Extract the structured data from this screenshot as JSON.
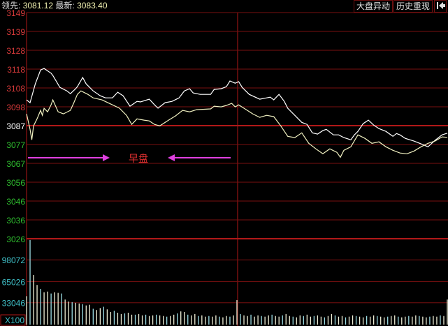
{
  "header": {
    "leader_label": "领先:",
    "leader_value": "3081.12",
    "latest_label": "最新:",
    "latest_value": "3083.40"
  },
  "toolbar": {
    "market_alert_label": "大盘异动",
    "history_replay_label": "历史重现",
    "back_icon": "skip-back-icon"
  },
  "annotation": {
    "session_label": "早盘",
    "arrow_color": "#e040e0",
    "label_color": "#e03030"
  },
  "colors": {
    "grid": "#7a1010",
    "grid_strong": "#b01818",
    "price_up": "#d83a3a",
    "price_flat": "#ffffff",
    "price_down": "#30c030",
    "volume_axis": "#40c0c8",
    "line_latest": "#ffffff",
    "line_leader": "#f0f0c0"
  },
  "chart_data": [
    {
      "type": "line",
      "x_unit": "minute index",
      "ylim": [
        3026,
        3149
      ],
      "reference_price": 3087,
      "y_ticks": [
        "3149",
        "3139",
        "3128",
        "3118",
        "3108",
        "3098",
        "3087",
        "3077",
        "3067",
        "3056",
        "3046",
        "3036",
        "3026"
      ],
      "series": [
        {
          "name": "最新",
          "points": [
            [
              0,
              3101.5
            ],
            [
              2,
              3100.0
            ],
            [
              5,
              3110.2
            ],
            [
              8,
              3117.8
            ],
            [
              10,
              3118.6
            ],
            [
              14,
              3116.0
            ],
            [
              15,
              3114.8
            ],
            [
              19,
              3108.3
            ],
            [
              23,
              3106.4
            ],
            [
              25,
              3104.9
            ],
            [
              28,
              3107.6
            ],
            [
              29,
              3108.7
            ],
            [
              32,
              3113.7
            ],
            [
              34,
              3110.2
            ],
            [
              36,
              3108.3
            ],
            [
              38,
              3106.4
            ],
            [
              42,
              3103.8
            ],
            [
              45,
              3102.6
            ],
            [
              49,
              3102.6
            ],
            [
              52,
              3105.7
            ],
            [
              55,
              3103.8
            ],
            [
              59,
              3098.1
            ],
            [
              63,
              3100.7
            ],
            [
              65,
              3100.4
            ],
            [
              70,
              3101.9
            ],
            [
              73,
              3098.8
            ],
            [
              75,
              3097.0
            ],
            [
              79,
              3100.0
            ],
            [
              83,
              3100.7
            ],
            [
              87,
              3102.6
            ],
            [
              90,
              3106.4
            ],
            [
              93,
              3107.6
            ],
            [
              95,
              3105.3
            ],
            [
              99,
              3104.5
            ],
            [
              105,
              3104.5
            ],
            [
              107,
              3107.2
            ],
            [
              111,
              3107.6
            ],
            [
              114,
              3108.7
            ],
            [
              116,
              3111.8
            ],
            [
              119,
              3110.6
            ],
            [
              121,
              3111.4
            ],
            [
              123,
              3108.3
            ],
            [
              127,
              3104.5
            ],
            [
              133,
              3101.9
            ],
            [
              137,
              3102.6
            ],
            [
              139,
              3103.0
            ],
            [
              141,
              3101.5
            ],
            [
              144,
              3104.5
            ],
            [
              147,
              3100.7
            ],
            [
              149,
              3097.0
            ],
            [
              153,
              3093.1
            ],
            [
              157,
              3089.3
            ],
            [
              160,
              3088.2
            ],
            [
              163,
              3083.6
            ],
            [
              166,
              3082.9
            ],
            [
              169,
              3084.8
            ],
            [
              171,
              3085.5
            ],
            [
              175,
              3082.5
            ],
            [
              178,
              3082.5
            ],
            [
              181,
              3081.0
            ],
            [
              185,
              3079.8
            ],
            [
              187,
              3082.5
            ],
            [
              189,
              3084.4
            ],
            [
              192,
              3088.6
            ],
            [
              195,
              3090.5
            ],
            [
              198,
              3087.8
            ],
            [
              201,
              3085.9
            ],
            [
              205,
              3084.4
            ],
            [
              209,
              3081.7
            ],
            [
              211,
              3083.2
            ],
            [
              213,
              3082.5
            ],
            [
              216,
              3080.6
            ],
            [
              221,
              3079.1
            ],
            [
              225,
              3077.6
            ],
            [
              229,
              3076.0
            ],
            [
              233,
              3079.5
            ],
            [
              237,
              3082.5
            ],
            [
              240,
              3083.4
            ]
          ]
        },
        {
          "name": "领先",
          "points": [
            [
              0,
              3093.9
            ],
            [
              2,
              3085.5
            ],
            [
              3,
              3079.8
            ],
            [
              4,
              3087.4
            ],
            [
              6,
              3091.2
            ],
            [
              8,
              3095.8
            ],
            [
              9,
              3093.1
            ],
            [
              10,
              3096.9
            ],
            [
              12,
              3095.0
            ],
            [
              14,
              3098.8
            ],
            [
              15,
              3101.5
            ],
            [
              18,
              3095.0
            ],
            [
              21,
              3093.9
            ],
            [
              25,
              3095.8
            ],
            [
              27,
              3100.0
            ],
            [
              29,
              3104.5
            ],
            [
              31,
              3106.4
            ],
            [
              35,
              3104.5
            ],
            [
              38,
              3102.6
            ],
            [
              43,
              3101.5
            ],
            [
              49,
              3098.8
            ],
            [
              53,
              3097.0
            ],
            [
              57,
              3093.1
            ],
            [
              60,
              3088.2
            ],
            [
              63,
              3091.2
            ],
            [
              67,
              3090.5
            ],
            [
              70,
              3090.1
            ],
            [
              73,
              3088.2
            ],
            [
              76,
              3087.4
            ],
            [
              81,
              3090.5
            ],
            [
              85,
              3092.8
            ],
            [
              89,
              3095.8
            ],
            [
              93,
              3095.0
            ],
            [
              97,
              3096.2
            ],
            [
              105,
              3096.6
            ],
            [
              107,
              3098.1
            ],
            [
              111,
              3097.7
            ],
            [
              114,
              3098.5
            ],
            [
              117,
              3099.6
            ],
            [
              119,
              3097.7
            ],
            [
              121,
              3098.8
            ],
            [
              124,
              3097.0
            ],
            [
              129,
              3093.9
            ],
            [
              133,
              3092.0
            ],
            [
              137,
              3093.1
            ],
            [
              141,
              3092.4
            ],
            [
              145,
              3087.4
            ],
            [
              149,
              3081.7
            ],
            [
              153,
              3081.0
            ],
            [
              157,
              3083.6
            ],
            [
              161,
              3077.9
            ],
            [
              165,
              3074.9
            ],
            [
              169,
              3072.2
            ],
            [
              173,
              3074.9
            ],
            [
              177,
              3073.0
            ],
            [
              179,
              3070.3
            ],
            [
              181,
              3074.1
            ],
            [
              185,
              3076.0
            ],
            [
              189,
              3082.5
            ],
            [
              193,
              3080.6
            ],
            [
              197,
              3077.9
            ],
            [
              201,
              3078.7
            ],
            [
              205,
              3076.0
            ],
            [
              209,
              3074.1
            ],
            [
              213,
              3072.6
            ],
            [
              217,
              3072.2
            ],
            [
              221,
              3073.7
            ],
            [
              225,
              3076.0
            ],
            [
              229,
              3077.9
            ],
            [
              233,
              3079.1
            ],
            [
              237,
              3081.4
            ],
            [
              240,
              3081.12
            ]
          ]
        }
      ]
    },
    {
      "type": "bar",
      "ylim": [
        0,
        130000
      ],
      "unit_label": "X100",
      "y_ticks": [
        "98072",
        "65026",
        "33046"
      ],
      "values": [
        43000,
        128000,
        75000,
        60000,
        54000,
        49000,
        50000,
        47000,
        49000,
        48000,
        47000,
        38000,
        35000,
        34000,
        33000,
        32000,
        31000,
        29000,
        30000,
        24000,
        22000,
        25000,
        27000,
        23000,
        19000,
        21000,
        18000,
        16000,
        17000,
        18000,
        15000,
        15000,
        16000,
        14000,
        15000,
        13000,
        14000,
        15000,
        14000,
        13000,
        12000,
        13000,
        15000,
        17000,
        20000,
        19000,
        15000,
        14000,
        16000,
        13000,
        14000,
        12000,
        13000,
        12000,
        14000,
        12000,
        11000,
        13000,
        12000,
        14000,
        37000,
        16000,
        14000,
        13000,
        15000,
        12000,
        14000,
        13000,
        12000,
        14000,
        15000,
        13000,
        12000,
        14000,
        16000,
        13000,
        12000,
        11000,
        14000,
        13000,
        15000,
        12000,
        13000,
        14000,
        12000,
        11000,
        13000,
        16000,
        14000,
        12000,
        13000,
        11000,
        12000,
        14000,
        13000,
        12000,
        11000,
        13000,
        12000,
        14000,
        13000,
        12000,
        11000,
        12000,
        13000,
        14000,
        12000,
        11000,
        12000,
        13000,
        12000,
        14000,
        13000,
        12000,
        11000,
        12000,
        13000,
        12000,
        14000,
        13000,
        38000
      ]
    }
  ]
}
